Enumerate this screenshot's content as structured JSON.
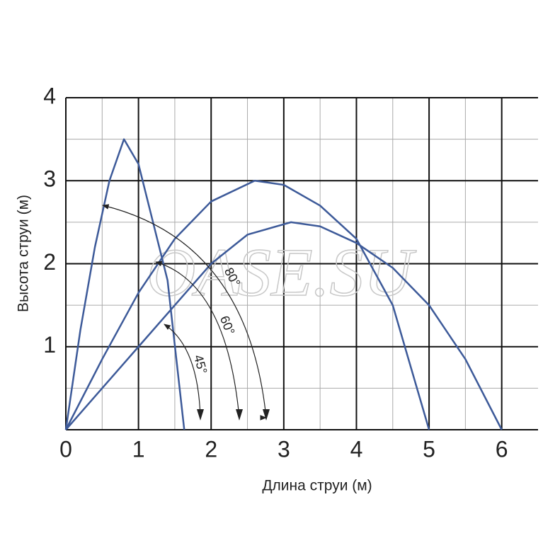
{
  "chart_data": {
    "type": "line",
    "x_label": "Длина струи (м)",
    "y_label": "Высота струи (м)",
    "watermark": "OASE.SU",
    "xlim": [
      0,
      6.5
    ],
    "ylim": [
      0,
      4
    ],
    "xticks": [
      0,
      1,
      2,
      3,
      4,
      5,
      6
    ],
    "yticks": [
      1,
      2,
      3,
      4
    ],
    "grid": true,
    "series": [
      {
        "name": "80°",
        "color": "#3d5a99",
        "x": [
          0,
          0.2,
          0.4,
          0.6,
          0.8,
          1.0,
          1.2,
          1.4,
          1.63
        ],
        "values": [
          0,
          1.2,
          2.2,
          3.0,
          3.5,
          3.2,
          2.5,
          1.8,
          0
        ]
      },
      {
        "name": "60°",
        "color": "#3d5a99",
        "x": [
          0,
          0.5,
          1,
          1.5,
          2,
          2.6,
          3,
          3.5,
          4,
          4.5,
          5
        ],
        "values": [
          0,
          0.85,
          1.65,
          2.3,
          2.75,
          3.0,
          2.95,
          2.7,
          2.3,
          1.5,
          0
        ]
      },
      {
        "name": "45°",
        "color": "#3d5a99",
        "x": [
          0,
          1,
          2,
          2.5,
          3.1,
          3.5,
          4,
          4.5,
          5,
          5.5,
          6
        ],
        "values": [
          0,
          1.0,
          2.0,
          2.35,
          2.5,
          2.45,
          2.25,
          1.95,
          1.5,
          0.85,
          0
        ]
      }
    ]
  }
}
